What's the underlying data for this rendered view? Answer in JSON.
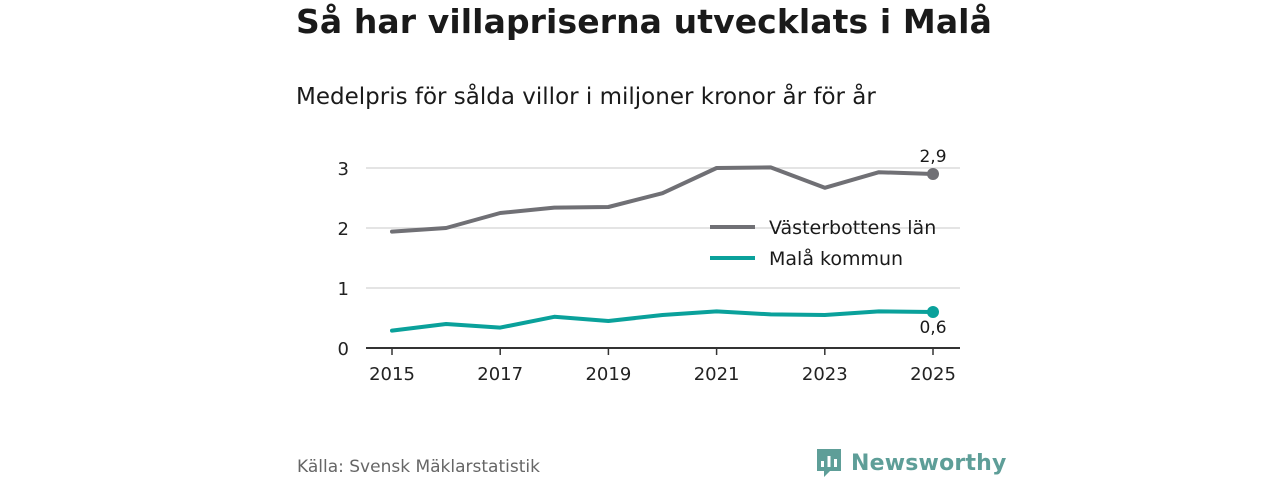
{
  "title": "Så har villapriserna utvecklats i Malå",
  "subtitle": "Medelpris för sålda villor i miljoner kronor år för år",
  "source": "Källa: Svensk Mäklarstatistik",
  "logo_text": "Newsworthy",
  "chart_data": {
    "type": "line",
    "title": "Så har villapriserna utvecklats i Malå",
    "subtitle": "Medelpris för sålda villor i miljoner kronor år för år",
    "xlabel": "",
    "ylabel": "",
    "x": [
      2015,
      2016,
      2017,
      2018,
      2019,
      2020,
      2021,
      2022,
      2023,
      2024,
      2025
    ],
    "x_ticks": [
      "2015",
      "2017",
      "2019",
      "2021",
      "2023",
      "2025"
    ],
    "y_ticks": [
      "0",
      "1",
      "2",
      "3"
    ],
    "ylim": [
      0,
      3.3
    ],
    "grid": true,
    "legend_position": "right",
    "series": [
      {
        "name": "Västerbottens län",
        "color": "#707075",
        "values": [
          1.94,
          2.0,
          2.25,
          2.34,
          2.35,
          2.58,
          3.0,
          3.01,
          2.67,
          2.93,
          2.9
        ],
        "end_label": "2,9"
      },
      {
        "name": "Malå kommun",
        "color": "#0aa19b",
        "values": [
          0.29,
          0.4,
          0.34,
          0.52,
          0.45,
          0.55,
          0.61,
          0.56,
          0.55,
          0.61,
          0.6
        ],
        "end_label": "0,6"
      }
    ]
  }
}
